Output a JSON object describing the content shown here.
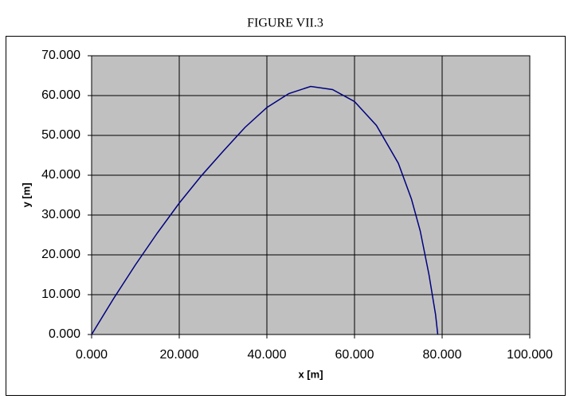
{
  "chart_data": {
    "type": "line",
    "title": "FIGURE VII.3",
    "xlabel": "x [m]",
    "ylabel": "y [m]",
    "x": [
      0,
      5,
      10,
      15,
      20,
      25,
      30,
      35,
      40,
      45,
      50,
      55,
      60,
      65,
      70,
      73,
      75,
      77,
      78.5,
      79
    ],
    "values": [
      0,
      9,
      17.5,
      25.5,
      33,
      39.8,
      46,
      52,
      57,
      60.5,
      62.3,
      61.5,
      58.5,
      52.5,
      43,
      34,
      26,
      15,
      5,
      0
    ],
    "color": "#000080",
    "background": "#c0c0c0",
    "grid": true,
    "xlim": [
      0,
      100
    ],
    "xticks": [
      {
        "value": 0,
        "label": "0.000"
      },
      {
        "value": 20,
        "label": "20.000"
      },
      {
        "value": 40,
        "label": "40.000"
      },
      {
        "value": 60,
        "label": "60.000"
      },
      {
        "value": 80,
        "label": "80.000"
      },
      {
        "value": 100,
        "label": "100.000"
      }
    ],
    "ylim": [
      0,
      70
    ],
    "yticks": [
      {
        "value": 0,
        "label": "0.000"
      },
      {
        "value": 10,
        "label": "10.000"
      },
      {
        "value": 20,
        "label": "20.000"
      },
      {
        "value": 30,
        "label": "30.000"
      },
      {
        "value": 40,
        "label": "40.000"
      },
      {
        "value": 50,
        "label": "50.000"
      },
      {
        "value": 60,
        "label": "60.000"
      },
      {
        "value": 70,
        "label": "70.000"
      }
    ]
  }
}
